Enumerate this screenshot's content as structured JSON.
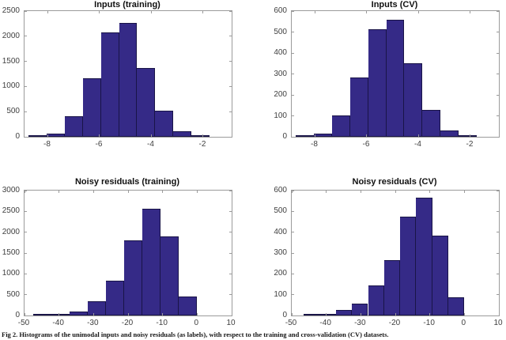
{
  "figure": {
    "caption": "Fig 2.  Histograms of the unimodal inputs and noisy residuals (as labels), with respect to the training and cross-validation (CV) datasets."
  },
  "colors": {
    "bar_fill": "#352a87",
    "bar_edge": "#191447",
    "axis_box": "#9b9b9b",
    "tick_label": "#3f3f3f",
    "title_text": "#101010"
  },
  "chart_data": [
    {
      "type": "bar",
      "subtype": "histogram",
      "title": "Inputs (training)",
      "xlim": [
        -8.9,
        -0.9
      ],
      "ylim": [
        0,
        2500
      ],
      "xticks": [
        -8,
        -6,
        -4,
        -2
      ],
      "yticks": [
        0,
        500,
        1000,
        1500,
        2000,
        2500
      ],
      "bin_start": -8.75,
      "bin_width": 0.7,
      "values": [
        10,
        65,
        405,
        1170,
        2080,
        2260,
        1370,
        520,
        115,
        25
      ],
      "grid": false,
      "legend": false
    },
    {
      "type": "bar",
      "subtype": "histogram",
      "title": "Inputs (CV)",
      "xlim": [
        -8.9,
        -0.9
      ],
      "ylim": [
        0,
        600
      ],
      "xticks": [
        -8,
        -6,
        -4,
        -2
      ],
      "yticks": [
        0,
        100,
        200,
        300,
        400,
        500,
        600
      ],
      "bin_start": -8.75,
      "bin_width": 0.7,
      "values": [
        4,
        14,
        102,
        284,
        513,
        560,
        352,
        130,
        29,
        7
      ],
      "grid": false,
      "legend": false
    },
    {
      "type": "bar",
      "subtype": "histogram",
      "title": "Noisy residuals (training)",
      "xlim": [
        -50,
        10
      ],
      "ylim": [
        0,
        3000
      ],
      "xticks": [
        -50,
        -40,
        -30,
        -20,
        -10,
        0,
        10
      ],
      "yticks": [
        0,
        500,
        1000,
        1500,
        2000,
        2500,
        3000
      ],
      "bin_start": -47.5,
      "bin_width": 5.278,
      "values": [
        10,
        25,
        100,
        350,
        840,
        1800,
        2570,
        1890,
        450
      ],
      "grid": false,
      "legend": false
    },
    {
      "type": "bar",
      "subtype": "histogram",
      "title": "Noisy residuals (CV)",
      "xlim": [
        -50,
        10
      ],
      "ylim": [
        0,
        600
      ],
      "xticks": [
        -50,
        -40,
        -30,
        -20,
        -10,
        0,
        10
      ],
      "yticks": [
        0,
        100,
        200,
        300,
        400,
        500,
        600
      ],
      "bin_start": -46.5,
      "bin_width": 4.65,
      "values": [
        3,
        6,
        25,
        57,
        143,
        265,
        475,
        565,
        385,
        88
      ],
      "grid": false,
      "legend": false
    }
  ]
}
